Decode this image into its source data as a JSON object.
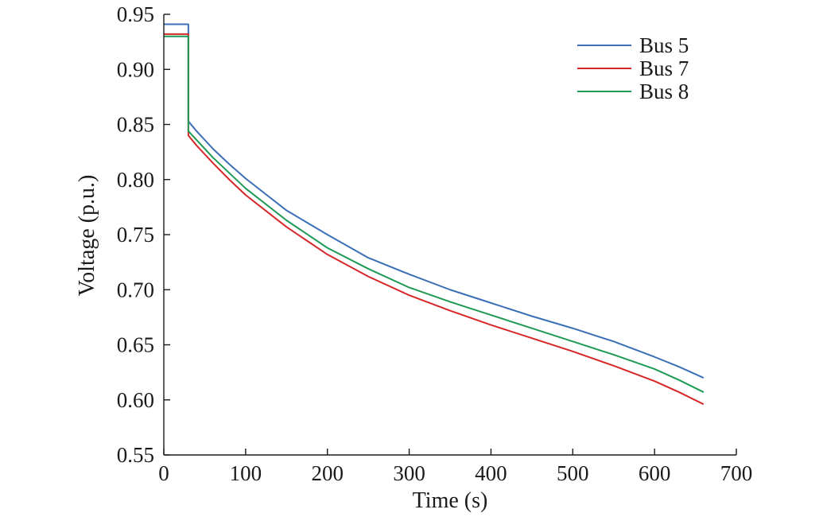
{
  "chart_data": {
    "type": "line",
    "xlabel": "Time (s)",
    "ylabel": "Voltage (p.u.)",
    "xlim": [
      0,
      700
    ],
    "ylim": [
      0.55,
      0.95
    ],
    "xticks": [
      0,
      100,
      200,
      300,
      400,
      500,
      600,
      700
    ],
    "xtick_labels": [
      "0",
      "100",
      "200",
      "300",
      "400",
      "500",
      "600",
      "700"
    ],
    "yticks": [
      0.55,
      0.6,
      0.65,
      0.7,
      0.75,
      0.8,
      0.85,
      0.9,
      0.95
    ],
    "ytick_labels": [
      "0.55",
      "0.60",
      "0.65",
      "0.70",
      "0.75",
      "0.80",
      "0.85",
      "0.90",
      "0.95"
    ],
    "grid": false,
    "legend_position": "top-right",
    "series": [
      {
        "name": "Bus 5",
        "color": "#3b6fb6",
        "x": [
          0,
          30,
          30,
          40,
          60,
          80,
          100,
          150,
          200,
          250,
          300,
          350,
          400,
          450,
          500,
          550,
          600,
          630,
          660
        ],
        "y": [
          0.941,
          0.941,
          0.853,
          0.844,
          0.828,
          0.814,
          0.801,
          0.772,
          0.75,
          0.729,
          0.714,
          0.7,
          0.688,
          0.676,
          0.665,
          0.653,
          0.639,
          0.63,
          0.62
        ]
      },
      {
        "name": "Bus 7",
        "color": "#d62728",
        "x": [
          0,
          30,
          30,
          40,
          60,
          80,
          100,
          150,
          200,
          250,
          300,
          350,
          400,
          450,
          500,
          550,
          600,
          630,
          660
        ],
        "y": [
          0.932,
          0.932,
          0.84,
          0.831,
          0.815,
          0.8,
          0.786,
          0.757,
          0.732,
          0.712,
          0.695,
          0.681,
          0.668,
          0.656,
          0.644,
          0.631,
          0.617,
          0.607,
          0.596
        ]
      },
      {
        "name": "Bus 8",
        "color": "#1f9a55",
        "x": [
          0,
          30,
          30,
          40,
          60,
          80,
          100,
          150,
          200,
          250,
          300,
          350,
          400,
          450,
          500,
          550,
          600,
          630,
          660
        ],
        "y": [
          0.93,
          0.93,
          0.844,
          0.836,
          0.82,
          0.806,
          0.792,
          0.763,
          0.738,
          0.719,
          0.702,
          0.689,
          0.677,
          0.665,
          0.653,
          0.641,
          0.628,
          0.618,
          0.607
        ]
      }
    ]
  }
}
